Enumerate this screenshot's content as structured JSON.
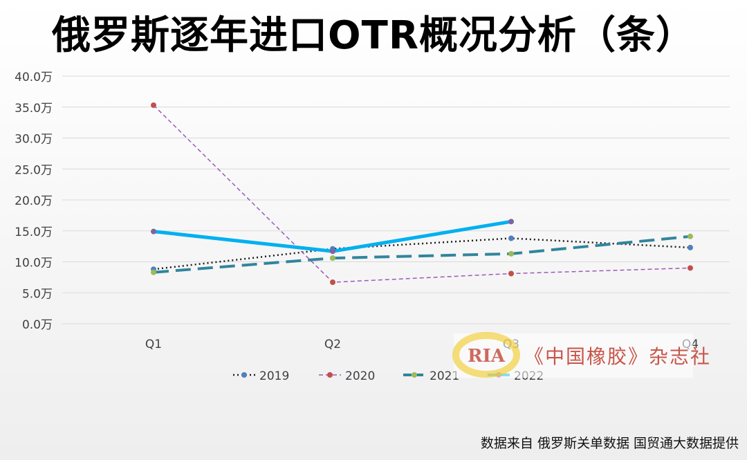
{
  "chart_data": {
    "type": "line",
    "title": "俄罗斯逐年进口OTR概况分析（条）",
    "categories": [
      "Q1",
      "Q2",
      "Q3",
      "Q4"
    ],
    "y_ticks": [
      "0.0万",
      "5.0万",
      "10.0万",
      "15.0万",
      "20.0万",
      "25.0万",
      "30.0万",
      "35.0万",
      "40.0万"
    ],
    "ylim": [
      0,
      40
    ],
    "grid": true,
    "legend_position": "bottom",
    "series": [
      {
        "name": "2019",
        "values": [
          8.8,
          12.1,
          13.8,
          12.3
        ],
        "color": "#1a1a1a",
        "marker": "#4f81bd",
        "style": "dotted"
      },
      {
        "name": "2020",
        "values": [
          35.3,
          6.7,
          8.1,
          9.0
        ],
        "color": "#9b59b6",
        "marker": "#c0504d",
        "style": "dashed"
      },
      {
        "name": "2021",
        "values": [
          8.3,
          10.6,
          11.3,
          14.1
        ],
        "color": "#31859c",
        "marker": "#9bbb59",
        "style": "longdash"
      },
      {
        "name": "2022",
        "values": [
          14.9,
          11.7,
          16.5,
          null
        ],
        "color": "#00b0f0",
        "marker": "#8064a2",
        "style": "solid"
      }
    ]
  },
  "watermark": {
    "logo_text": "RIA",
    "text": "《中国橡胶》杂志社"
  },
  "footer": "数据来自 俄罗斯关单数据 国贸通大数据提供"
}
